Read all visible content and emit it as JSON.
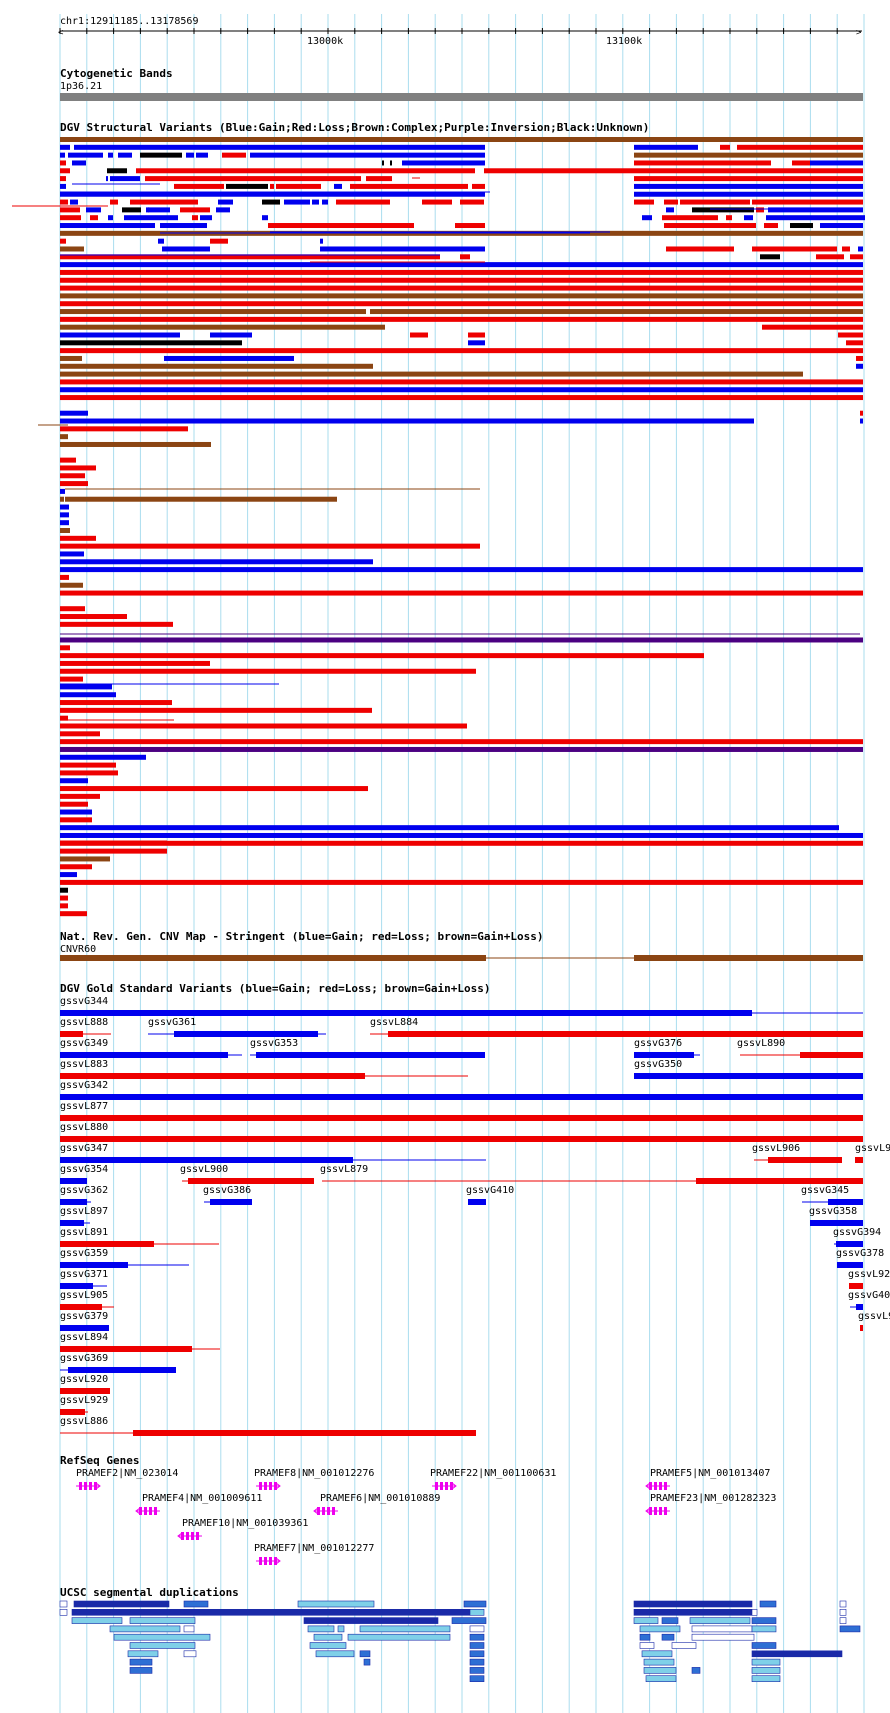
{
  "ruler": {
    "position": "chr1:12911185..13178569",
    "ticks": [
      "13000k",
      "13100k"
    ]
  },
  "tracks": {
    "cytoband": {
      "title": "Cytogenetic Bands",
      "label": "1p36.21"
    },
    "dgv_structural": {
      "title": "DGV Structural Variants (Blue:Gain;Red:Loss;Brown:Complex;Purple:Inversion;Black:Unknown)"
    },
    "cnv_map": {
      "title": "Nat. Rev. Gen. CNV Map - Stringent (blue=Gain; red=Loss; brown=Gain+Loss)",
      "label": "CNVR60"
    },
    "gold_standard": {
      "title": "DGV Gold Standard Variants (blue=Gain; red=Loss; brown=Gain+Loss)",
      "items": [
        "gssvG344",
        "gssvL888",
        "gssvG361",
        "gssvL884",
        "gssvG349",
        "gssvG353",
        "gssvG376",
        "gssvL890",
        "gssvL883",
        "gssvG350",
        "gssvG342",
        "gssvL877",
        "gssvL880",
        "gssvG347",
        "gssvL906",
        "gssvL9",
        "gssvG354",
        "gssvL900",
        "gssvL879",
        "gssvG362",
        "gssvG386",
        "gssvG410",
        "gssvG345",
        "gssvL897",
        "gssvG358",
        "gssvL891",
        "gssvG394",
        "gssvG359",
        "gssvG378",
        "gssvG371",
        "gssvL92",
        "gssvL905",
        "gssvG40",
        "gssvG379",
        "gssvL9",
        "gssvL894",
        "gssvG369",
        "gssvL920",
        "gssvL929",
        "gssvL886"
      ]
    },
    "refseq": {
      "title": "RefSeq Genes",
      "genes": [
        "PRAMEF2|NM_023014",
        "PRAMEF8|NM_001012276",
        "PRAMEF22|NM_001100631",
        "PRAMEF5|NM_001013407",
        "PRAMEF4|NM_001009611",
        "PRAMEF6|NM_001010889",
        "PRAMEF23|NM_001282323",
        "PRAMEF10|NM_001039361",
        "PRAMEF7|NM_001012277"
      ]
    },
    "segdups": {
      "title": "UCSC segmental duplications"
    }
  },
  "colors": {
    "gain": "#0000ee",
    "loss": "#ee0000",
    "complex": "#8b4513",
    "inversion": "#4b0082",
    "unknown": "#000000",
    "gene": "#ee00ee",
    "grid": "#aaddee"
  }
}
